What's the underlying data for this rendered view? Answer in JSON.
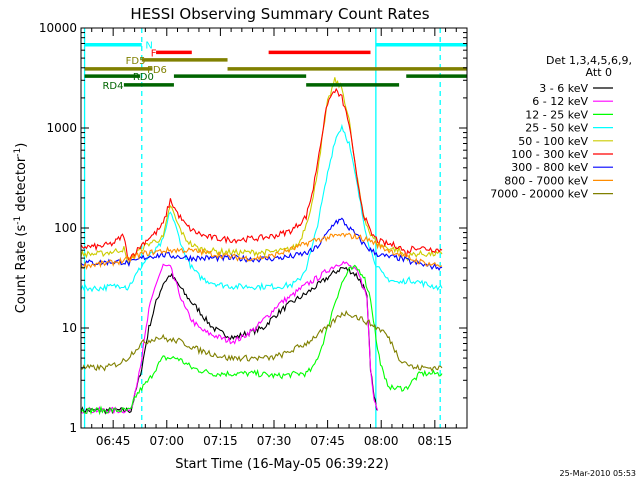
{
  "chart_data": {
    "type": "line",
    "title": "HESSI Observing Summary Count Rates",
    "xlabel": "Start Time (16-May-05 06:39:22)",
    "ylabel_main": "Count Rate (s",
    "ylabel_sup": "-1",
    "ylabel_rest": " detector",
    "ylabel_sup2": "-1",
    "ylabel_end": ")",
    "y_scale": "log",
    "ylim": [
      1,
      10000
    ],
    "xlim_minutes": [
      -3,
      105
    ],
    "x_ticks": [
      {
        "t": 6,
        "label": "06:45"
      },
      {
        "t": 21,
        "label": "07:00"
      },
      {
        "t": 36,
        "label": "07:15"
      },
      {
        "t": 51,
        "label": "07:30"
      },
      {
        "t": 66,
        "label": "07:45"
      },
      {
        "t": 81,
        "label": "08:00"
      },
      {
        "t": 96,
        "label": "08:15"
      }
    ],
    "y_ticks": [
      {
        "v": 1,
        "label": "1"
      },
      {
        "v": 10,
        "label": "10"
      },
      {
        "v": 100,
        "label": "100"
      },
      {
        "v": 1000,
        "label": "1000"
      },
      {
        "v": 10000,
        "label": "10000"
      }
    ],
    "legend_title_1": "Det 1,3,4,5,6,9,",
    "legend_title_2": "Att 0",
    "legend_placement": "right",
    "vertical_lines": [
      {
        "t": -2,
        "color": "#00ffff",
        "style": "solid"
      },
      {
        "t": 14,
        "color": "#00ffff",
        "style": "dashed"
      },
      {
        "t": 79.5,
        "color": "#00ffff",
        "style": "solid"
      },
      {
        "t": 97.5,
        "color": "#00ffff",
        "style": "dashed"
      }
    ],
    "flag_bars": [
      {
        "label": "N",
        "color": "#00ffff",
        "y": 6800,
        "segments": [
          [
            -2,
            14
          ],
          [
            79.5,
            105
          ]
        ]
      },
      {
        "label": "F",
        "color": "#ff0000",
        "y": 5700,
        "segments": [
          [
            18,
            28
          ],
          [
            49.5,
            78
          ]
        ]
      },
      {
        "label": "FD5",
        "color": "#808000",
        "y": 4800,
        "segments": [
          [
            14,
            38
          ]
        ]
      },
      {
        "label": "FD6",
        "color": "#808000",
        "y": 3900,
        "segments": [
          [
            -2,
            17
          ],
          [
            38,
            105
          ]
        ]
      },
      {
        "label": "RD0",
        "color": "#006400",
        "y": 3300,
        "segments": [
          [
            -2,
            13.5
          ],
          [
            23,
            60
          ],
          [
            88,
            105
          ]
        ]
      },
      {
        "label": "RD4",
        "color": "#006400",
        "y": 2700,
        "segments": [
          [
            9,
            23
          ],
          [
            60,
            86
          ]
        ]
      }
    ],
    "series": [
      {
        "name": "3 - 6 keV",
        "color": "#000000",
        "x": [
          -3,
          11,
          14,
          16,
          18,
          20,
          22,
          24,
          26,
          28,
          30,
          32,
          34,
          36,
          38,
          40,
          42,
          44,
          46,
          48,
          50,
          52,
          54,
          56,
          58,
          60,
          62,
          64,
          66,
          68,
          70,
          72,
          74,
          75,
          76,
          77,
          78,
          79,
          80
        ],
        "y": [
          1.5,
          1.5,
          4,
          10,
          18,
          28,
          34,
          28,
          22,
          18,
          15,
          12,
          10,
          9,
          8.5,
          8,
          8.5,
          9,
          9.5,
          10,
          12,
          14,
          16,
          18,
          20,
          22,
          25,
          28,
          32,
          36,
          40,
          38,
          34,
          30,
          26,
          20,
          4,
          2,
          1.5
        ]
      },
      {
        "name": "6 - 12 keV",
        "color": "#ff00ff",
        "x": [
          -3,
          11,
          14,
          16,
          18,
          20,
          22,
          24,
          26,
          28,
          30,
          32,
          34,
          36,
          38,
          40,
          42,
          44,
          46,
          48,
          50,
          52,
          54,
          56,
          58,
          60,
          62,
          64,
          66,
          68,
          70,
          72,
          74,
          75,
          76,
          77,
          78,
          79,
          80
        ],
        "y": [
          1.5,
          1.5,
          5,
          15,
          28,
          42,
          40,
          25,
          16,
          12,
          10,
          9,
          8.5,
          8,
          7.5,
          7.5,
          8,
          9,
          10,
          12,
          14,
          17,
          19,
          21,
          24,
          27,
          30,
          33,
          38,
          42,
          46,
          42,
          37,
          32,
          26,
          20,
          4,
          2,
          1.5
        ]
      },
      {
        "name": "12 - 25 keV",
        "color": "#00ff00",
        "x": [
          -3,
          11,
          12,
          14,
          16,
          18,
          20,
          22,
          24,
          26,
          28,
          30,
          34,
          40,
          46,
          52,
          58,
          60,
          62,
          64,
          66,
          68,
          70,
          72,
          74,
          76,
          78,
          80,
          82,
          84,
          88,
          90,
          92,
          94,
          98
        ],
        "y": [
          1.5,
          1.5,
          2,
          2.5,
          3,
          4,
          5,
          5,
          5,
          4.5,
          4,
          3.8,
          3.5,
          3.5,
          3.5,
          3.3,
          3.5,
          3.5,
          4,
          6,
          10,
          18,
          28,
          38,
          40,
          34,
          20,
          6,
          3,
          2.5,
          2.5,
          3,
          3.5,
          3.5,
          3.5
        ]
      },
      {
        "name": "25 - 50 keV",
        "color": "#00ffff",
        "x": [
          -3,
          2,
          6,
          9,
          10,
          12,
          14,
          16,
          18,
          20,
          22,
          24,
          26,
          28,
          30,
          32,
          36,
          40,
          44,
          48,
          52,
          56,
          58,
          60,
          62,
          64,
          66,
          68,
          70,
          72,
          74,
          76,
          78,
          80,
          82,
          84,
          86,
          88,
          90,
          94,
          98
        ],
        "y": [
          25,
          25,
          26,
          27,
          25,
          32,
          42,
          52,
          60,
          75,
          150,
          90,
          55,
          40,
          33,
          30,
          27,
          26,
          26,
          26,
          26,
          27,
          30,
          40,
          70,
          150,
          350,
          750,
          1050,
          700,
          300,
          120,
          60,
          40,
          32,
          30,
          28,
          30,
          30,
          27,
          25
        ]
      },
      {
        "name": "50 - 100 keV",
        "color": "#cccc00",
        "x": [
          -3,
          2,
          6,
          9,
          10,
          12,
          14,
          16,
          18,
          20,
          22,
          24,
          26,
          28,
          30,
          32,
          36,
          40,
          44,
          48,
          52,
          56,
          58,
          60,
          62,
          64,
          66,
          68,
          70,
          72,
          74,
          76,
          78,
          80,
          82,
          84,
          86,
          88,
          90,
          94,
          98
        ],
        "y": [
          55,
          55,
          58,
          62,
          45,
          55,
          62,
          70,
          75,
          80,
          170,
          110,
          80,
          68,
          62,
          60,
          58,
          57,
          57,
          57,
          58,
          62,
          70,
          110,
          200,
          600,
          1800,
          3000,
          2500,
          1200,
          350,
          140,
          85,
          70,
          65,
          62,
          60,
          50,
          55,
          55,
          55
        ]
      },
      {
        "name": "100 - 300 keV",
        "color": "#ff0000",
        "x": [
          -3,
          2,
          6,
          9,
          10,
          12,
          14,
          16,
          18,
          20,
          22,
          24,
          26,
          28,
          30,
          32,
          36,
          40,
          44,
          48,
          52,
          56,
          58,
          60,
          62,
          64,
          66,
          68,
          70,
          72,
          74,
          76,
          78,
          80,
          82,
          84,
          86,
          88,
          90,
          94,
          98
        ],
        "y": [
          65,
          65,
          70,
          85,
          50,
          56,
          68,
          80,
          90,
          110,
          190,
          140,
          110,
          95,
          88,
          82,
          78,
          76,
          78,
          80,
          85,
          95,
          110,
          130,
          250,
          700,
          1800,
          2400,
          2000,
          1100,
          350,
          140,
          90,
          75,
          70,
          68,
          66,
          55,
          65,
          62,
          60
        ]
      },
      {
        "name": "300 - 800 keV",
        "color": "#0000ff",
        "x": [
          -3,
          2,
          6,
          9,
          10,
          12,
          14,
          16,
          20,
          24,
          28,
          32,
          36,
          40,
          44,
          48,
          52,
          56,
          60,
          62,
          64,
          66,
          68,
          70,
          72,
          74,
          76,
          78,
          80,
          82,
          86,
          90,
          94,
          98
        ],
        "y": [
          45,
          45,
          46,
          46,
          44,
          46,
          50,
          52,
          54,
          52,
          50,
          50,
          50,
          50,
          49,
          49,
          50,
          52,
          56,
          60,
          70,
          90,
          115,
          120,
          100,
          85,
          70,
          60,
          55,
          52,
          50,
          45,
          42,
          40
        ]
      },
      {
        "name": "800 - 7000 keV",
        "color": "#ff8c00",
        "x": [
          -3,
          4,
          10,
          14,
          18,
          22,
          26,
          30,
          34,
          38,
          42,
          46,
          50,
          54,
          58,
          62,
          66,
          70,
          74,
          78,
          82,
          86,
          90,
          94,
          98
        ],
        "y": [
          42,
          44,
          48,
          55,
          58,
          60,
          60,
          58,
          55,
          52,
          50,
          50,
          52,
          58,
          65,
          75,
          80,
          85,
          82,
          75,
          62,
          55,
          48,
          44,
          42
        ]
      },
      {
        "name": "7000 - 20000 keV",
        "color": "#808000",
        "x": [
          -3,
          4,
          8,
          10,
          12,
          14,
          16,
          18,
          20,
          22,
          24,
          26,
          28,
          30,
          34,
          38,
          42,
          46,
          50,
          54,
          58,
          60,
          62,
          64,
          66,
          68,
          70,
          72,
          74,
          76,
          78,
          80,
          82,
          84,
          86,
          88,
          90,
          94,
          98
        ],
        "y": [
          4,
          4,
          4.5,
          5,
          6,
          7,
          7.5,
          8,
          8,
          7.5,
          7.5,
          7,
          6.5,
          6,
          5.5,
          5,
          5,
          5,
          5,
          5.5,
          6.5,
          7,
          8,
          9,
          10,
          12,
          14,
          14,
          13,
          12,
          11,
          10,
          9,
          7,
          5,
          4.5,
          4,
          4,
          4
        ]
      }
    ],
    "footer_timestamp": "25-Mar-2010 05:53"
  }
}
